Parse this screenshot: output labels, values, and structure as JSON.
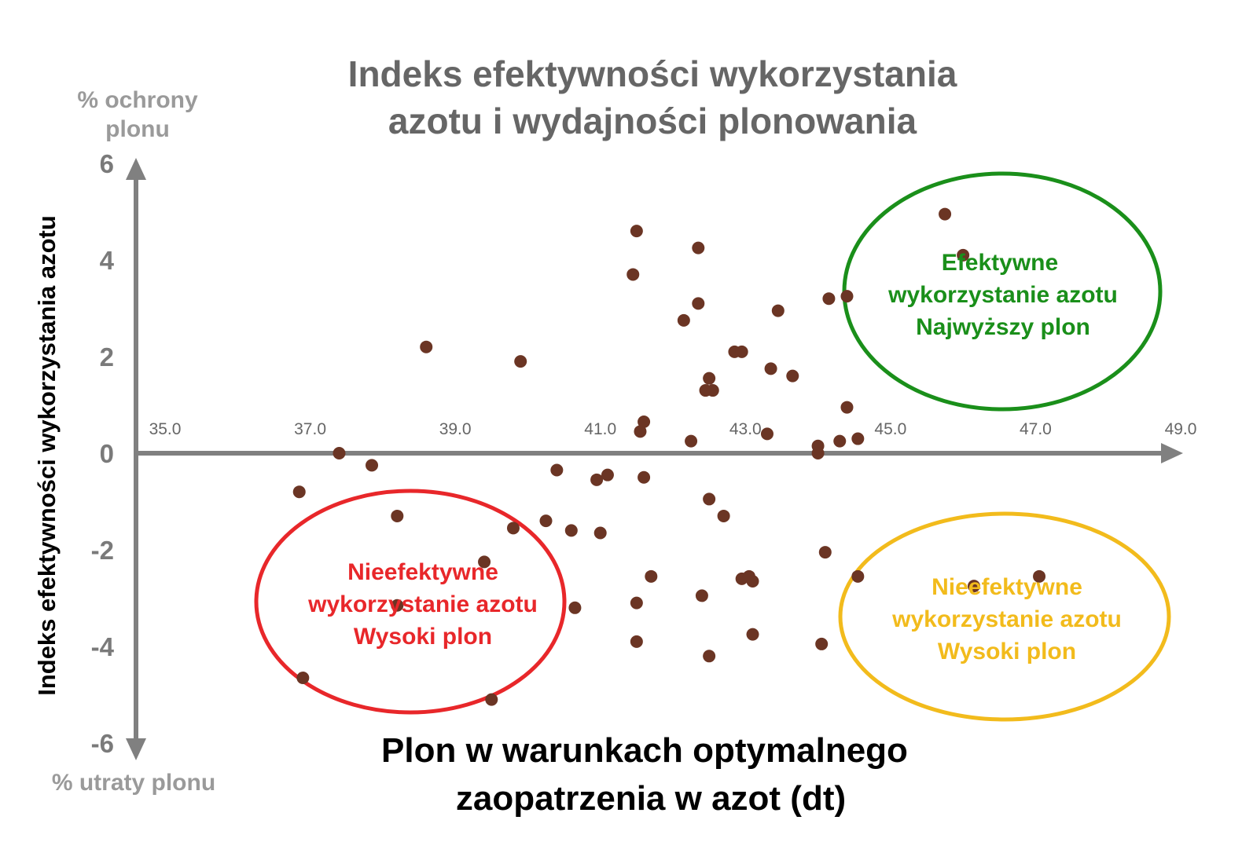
{
  "chart_data": {
    "type": "scatter",
    "title": [
      "Indeks efektywności wykorzystania",
      "azotu i wydajności plonowania"
    ],
    "xlabel": [
      "Plon w warunkach optymalnego",
      "zaopatrzenia w azot (dt)"
    ],
    "ylabel": "Indeks efektywności wykorzystania azotu",
    "y_top_hint": [
      "% ochrony",
      "plonu"
    ],
    "y_bottom_hint": "% utraty plonu",
    "xlim": [
      35.0,
      49.0
    ],
    "ylim": [
      -6,
      6
    ],
    "x_ticks": [
      "35.0",
      "37.0",
      "39.0",
      "41.0",
      "43.0",
      "45.0",
      "47.0",
      "49.0"
    ],
    "y_ticks": [
      "6",
      "4",
      "2",
      "0",
      "-2",
      "-4",
      "-6"
    ],
    "grid": false,
    "point_color": "#6b3524",
    "axis_color": "#808080",
    "points": [
      {
        "x": 36.85,
        "y": -0.8
      },
      {
        "x": 36.9,
        "y": -4.65
      },
      {
        "x": 37.4,
        "y": 0.0
      },
      {
        "x": 37.85,
        "y": -0.25
      },
      {
        "x": 38.2,
        "y": -1.3
      },
      {
        "x": 38.6,
        "y": 2.2
      },
      {
        "x": 38.2,
        "y": -3.15
      },
      {
        "x": 39.4,
        "y": -2.25
      },
      {
        "x": 39.5,
        "y": -5.1
      },
      {
        "x": 39.8,
        "y": -1.55
      },
      {
        "x": 39.9,
        "y": 1.9
      },
      {
        "x": 40.25,
        "y": -1.4
      },
      {
        "x": 40.4,
        "y": -0.35
      },
      {
        "x": 40.6,
        "y": -1.6
      },
      {
        "x": 40.65,
        "y": -3.2
      },
      {
        "x": 40.95,
        "y": -0.55
      },
      {
        "x": 41.0,
        "y": -1.65
      },
      {
        "x": 41.1,
        "y": -0.45
      },
      {
        "x": 41.45,
        "y": 3.7
      },
      {
        "x": 41.5,
        "y": 4.6
      },
      {
        "x": 41.5,
        "y": -3.1
      },
      {
        "x": 41.5,
        "y": -3.9
      },
      {
        "x": 41.55,
        "y": 0.45
      },
      {
        "x": 41.6,
        "y": 0.65
      },
      {
        "x": 41.6,
        "y": -0.5
      },
      {
        "x": 41.7,
        "y": -2.55
      },
      {
        "x": 42.15,
        "y": 2.75
      },
      {
        "x": 42.25,
        "y": 0.25
      },
      {
        "x": 42.4,
        "y": -2.95
      },
      {
        "x": 42.45,
        "y": 1.3
      },
      {
        "x": 42.35,
        "y": 3.1
      },
      {
        "x": 42.35,
        "y": 4.25
      },
      {
        "x": 42.55,
        "y": 1.3
      },
      {
        "x": 42.5,
        "y": -0.95
      },
      {
        "x": 42.5,
        "y": 1.55
      },
      {
        "x": 42.5,
        "y": -4.2
      },
      {
        "x": 42.7,
        "y": -1.3
      },
      {
        "x": 42.85,
        "y": 2.1
      },
      {
        "x": 42.95,
        "y": 2.1
      },
      {
        "x": 42.95,
        "y": -2.6
      },
      {
        "x": 43.05,
        "y": -2.55
      },
      {
        "x": 43.1,
        "y": -2.65
      },
      {
        "x": 43.1,
        "y": -3.75
      },
      {
        "x": 43.3,
        "y": 0.4
      },
      {
        "x": 43.35,
        "y": 1.75
      },
      {
        "x": 43.45,
        "y": 2.95
      },
      {
        "x": 43.65,
        "y": 1.6
      },
      {
        "x": 44.0,
        "y": 0.15
      },
      {
        "x": 44.0,
        "y": 0.0
      },
      {
        "x": 44.05,
        "y": -3.95
      },
      {
        "x": 44.1,
        "y": -2.05
      },
      {
        "x": 44.15,
        "y": 3.2
      },
      {
        "x": 44.3,
        "y": 0.25
      },
      {
        "x": 44.4,
        "y": 0.95
      },
      {
        "x": 44.4,
        "y": 3.25
      },
      {
        "x": 44.55,
        "y": 0.3
      },
      {
        "x": 44.55,
        "y": -2.55
      },
      {
        "x": 45.75,
        "y": 4.95
      },
      {
        "x": 46.0,
        "y": 4.1
      },
      {
        "x": 46.15,
        "y": -2.75
      },
      {
        "x": 47.05,
        "y": -2.55
      }
    ],
    "zones": [
      {
        "id": "efficient",
        "color": "#1a8f1a",
        "lines": [
          "Efektywne",
          "wykorzystanie azotu",
          "Najwyższy plon"
        ]
      },
      {
        "id": "inefficient-left",
        "color": "#e8272a",
        "lines": [
          "Nieefektywne",
          "wykorzystanie azotu",
          "Wysoki plon"
        ]
      },
      {
        "id": "inefficient-right",
        "color": "#f2bb1c",
        "lines": [
          "Nieefektywne",
          "wykorzystanie azotu",
          "Wysoki plon"
        ]
      }
    ]
  }
}
